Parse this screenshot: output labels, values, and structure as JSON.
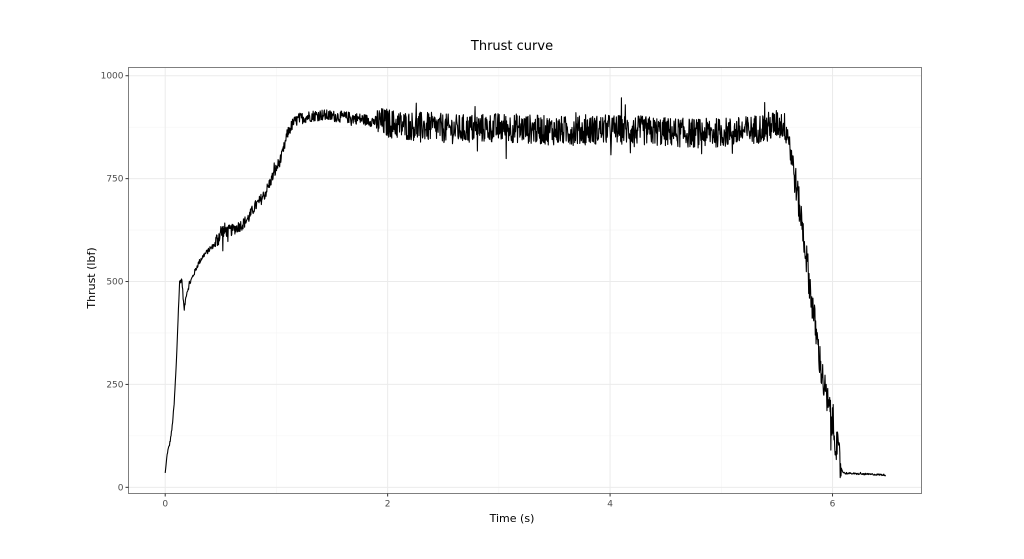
{
  "chart_data": {
    "type": "line",
    "title": "Thrust curve",
    "xlabel": "Time (s)",
    "ylabel": "Thrust (lbf)",
    "xlim": [
      -0.33,
      6.8
    ],
    "ylim": [
      -15,
      1020
    ],
    "x_ticks": [
      0,
      2,
      4,
      6
    ],
    "y_ticks": [
      0,
      250,
      500,
      750,
      1000
    ],
    "grid": true,
    "legend": "none",
    "colors": {
      "line": "#000000",
      "panel_border": "#7f7f7f",
      "grid_major": "#ebebeb",
      "grid_minor": "#f5f5f5",
      "tick_text": "#4d4d4d"
    },
    "series": [
      {
        "points": [
          [
            0.0,
            35
          ],
          [
            0.02,
            85
          ],
          [
            0.04,
            105
          ],
          [
            0.06,
            140
          ],
          [
            0.08,
            200
          ],
          [
            0.1,
            300
          ],
          [
            0.12,
            440
          ],
          [
            0.13,
            500
          ],
          [
            0.15,
            505
          ],
          [
            0.17,
            430
          ],
          [
            0.19,
            470
          ],
          [
            0.22,
            495
          ],
          [
            0.26,
            520
          ],
          [
            0.3,
            545
          ],
          [
            0.35,
            565
          ],
          [
            0.4,
            578
          ],
          [
            0.45,
            592
          ],
          [
            0.5,
            620
          ],
          [
            0.55,
            622
          ],
          [
            0.6,
            625
          ],
          [
            0.65,
            632
          ],
          [
            0.7,
            640
          ],
          [
            0.75,
            655
          ],
          [
            0.8,
            680
          ],
          [
            0.85,
            695
          ],
          [
            0.9,
            715
          ],
          [
            0.95,
            745
          ],
          [
            1.0,
            775
          ],
          [
            1.05,
            805
          ],
          [
            1.1,
            860
          ],
          [
            1.15,
            885
          ],
          [
            1.2,
            895
          ],
          [
            1.3,
            902
          ],
          [
            1.4,
            905
          ],
          [
            1.5,
            902
          ],
          [
            1.6,
            900
          ],
          [
            1.7,
            897
          ],
          [
            1.8,
            893
          ],
          [
            1.9,
            888
          ],
          [
            2.0,
            885
          ],
          [
            2.1,
            880
          ],
          [
            2.2,
            878
          ],
          [
            2.4,
            875
          ],
          [
            2.6,
            870
          ],
          [
            2.8,
            872
          ],
          [
            3.0,
            874
          ],
          [
            3.2,
            872
          ],
          [
            3.4,
            868
          ],
          [
            3.6,
            866
          ],
          [
            3.8,
            868
          ],
          [
            4.0,
            870
          ],
          [
            4.2,
            868
          ],
          [
            4.4,
            865
          ],
          [
            4.6,
            862
          ],
          [
            4.8,
            860
          ],
          [
            5.0,
            862
          ],
          [
            5.2,
            865
          ],
          [
            5.4,
            875
          ],
          [
            5.5,
            882
          ],
          [
            5.56,
            880
          ],
          [
            5.6,
            860
          ],
          [
            5.64,
            790
          ],
          [
            5.68,
            720
          ],
          [
            5.72,
            650
          ],
          [
            5.76,
            570
          ],
          [
            5.8,
            480
          ],
          [
            5.84,
            400
          ],
          [
            5.88,
            320
          ],
          [
            5.92,
            250
          ],
          [
            5.96,
            200
          ],
          [
            6.0,
            150
          ],
          [
            6.04,
            100
          ],
          [
            6.07,
            50
          ],
          [
            6.1,
            35
          ],
          [
            6.2,
            33
          ],
          [
            6.3,
            32
          ],
          [
            6.4,
            31
          ],
          [
            6.48,
            30
          ]
        ]
      }
    ]
  }
}
